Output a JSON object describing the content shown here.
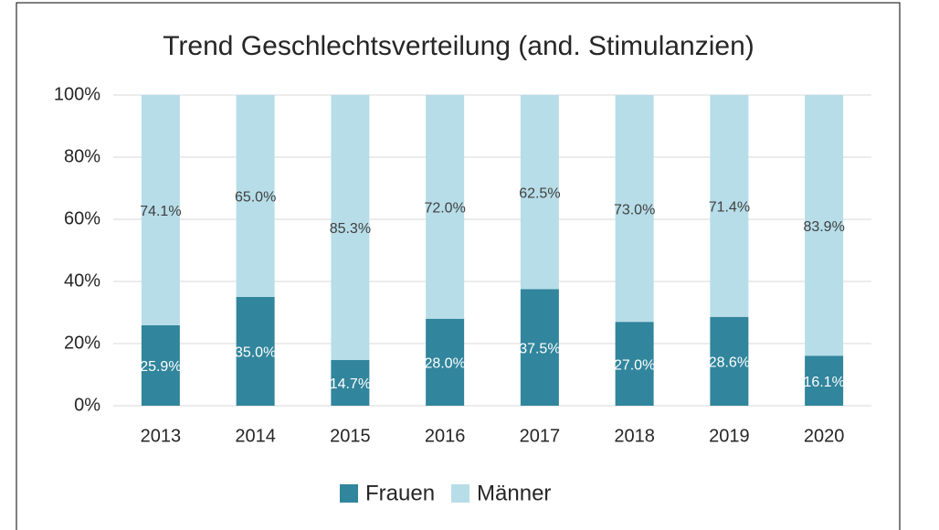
{
  "chart_data": {
    "type": "stacked_bar",
    "title": "Trend Geschlechtsverteilung (and. Stimulanzien)",
    "categories": [
      "2013",
      "2014",
      "2015",
      "2016",
      "2017",
      "2018",
      "2019",
      "2020"
    ],
    "series": [
      {
        "name": "Frauen",
        "color": "#31859c",
        "values": [
          25.9,
          35.0,
          14.7,
          28.0,
          37.5,
          27.0,
          28.6,
          16.1
        ],
        "value_labels": [
          "25.9%",
          "35.0%",
          "14.7%",
          "28.0%",
          "37.5%",
          "27.0%",
          "28.6%",
          "16.1%"
        ]
      },
      {
        "name": "Männer",
        "color": "#b7dde8",
        "values": [
          74.1,
          65.0,
          85.3,
          72.0,
          62.5,
          73.0,
          71.4,
          83.9
        ],
        "value_labels": [
          "74.1%",
          "65.0%",
          "85.3%",
          "72.0%",
          "62.5%",
          "73.0%",
          "71.4%",
          "83.9%"
        ]
      }
    ],
    "ylim": [
      0,
      100
    ],
    "yticks": [
      {
        "value": 0,
        "label": "0%"
      },
      {
        "value": 20,
        "label": "20%"
      },
      {
        "value": 40,
        "label": "40%"
      },
      {
        "value": 60,
        "label": "60%"
      },
      {
        "value": 80,
        "label": "80%"
      },
      {
        "value": 100,
        "label": "100%"
      }
    ],
    "grid": true,
    "legend": "bottom"
  }
}
